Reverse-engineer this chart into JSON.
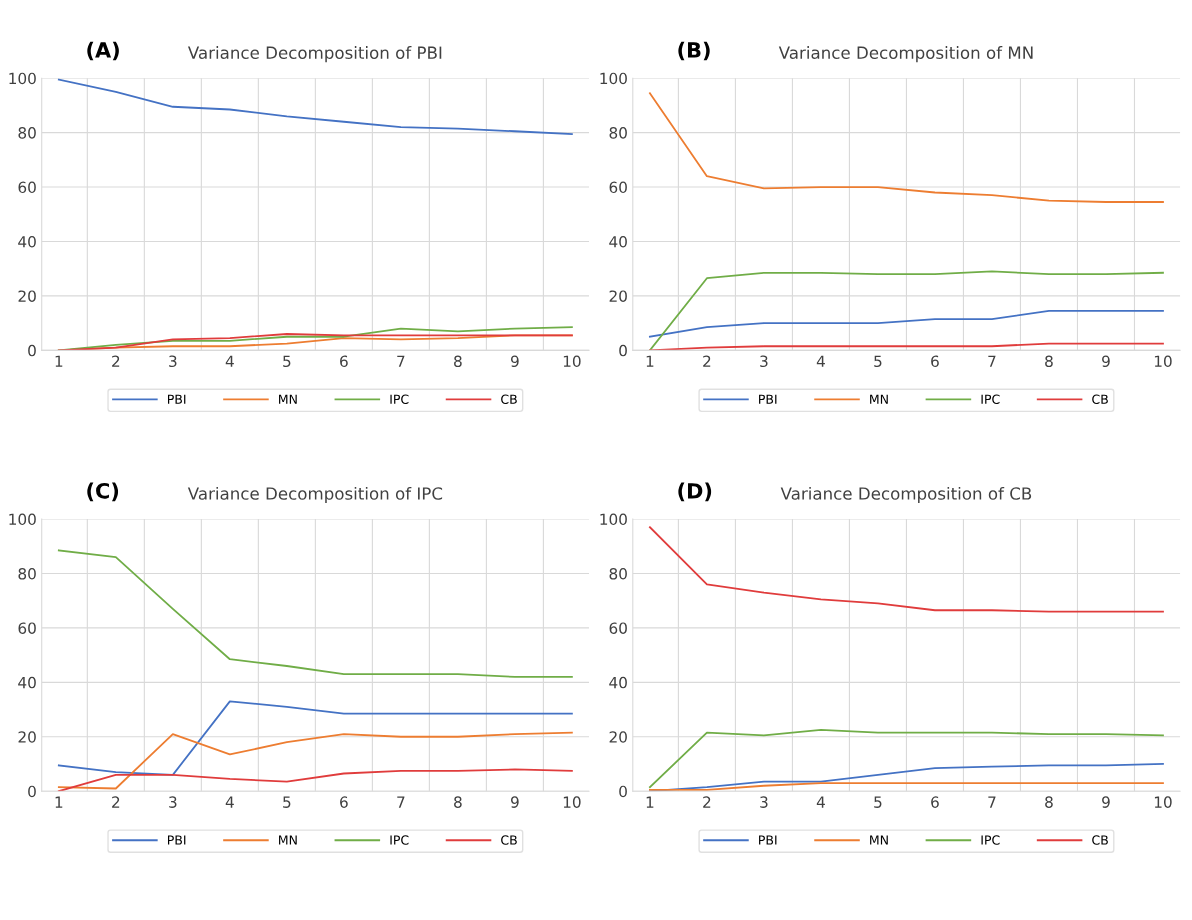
{
  "chart_data": [
    {
      "type": "line",
      "title": "Variance Decomposition of PBI",
      "annotations": [
        "(A)"
      ],
      "categories": [
        "1",
        "2",
        "3",
        "4",
        "5",
        "6",
        "7",
        "8",
        "9",
        "10"
      ],
      "ylim": [
        0,
        100
      ],
      "yticks": [
        0,
        20,
        40,
        60,
        80,
        100
      ],
      "grid": true,
      "legend": "bottom",
      "series": [
        {
          "name": "PBI",
          "color": "#4472c4",
          "values": [
            99.5,
            95,
            89.5,
            88.5,
            86,
            84,
            82,
            81.5,
            80.5,
            79.5
          ]
        },
        {
          "name": "MN",
          "color": "#ed7d31",
          "values": [
            0,
            1,
            1.5,
            1.5,
            2.5,
            4.5,
            4,
            4.5,
            5.5,
            5.5
          ]
        },
        {
          "name": "IPC",
          "color": "#70ad47",
          "values": [
            0,
            2,
            3.5,
            3.5,
            5,
            5,
            8,
            7,
            8,
            8.5
          ]
        },
        {
          "name": "CB",
          "color": "#e03c3c",
          "values": [
            0,
            1,
            4,
            4.5,
            6,
            5.5,
            5.5,
            5.5,
            5.5,
            5.5
          ]
        }
      ]
    },
    {
      "type": "line",
      "title": "Variance Decomposition of MN",
      "annotations": [
        "(B)"
      ],
      "categories": [
        "1",
        "2",
        "3",
        "4",
        "5",
        "6",
        "7",
        "8",
        "9",
        "10"
      ],
      "ylim": [
        0,
        100
      ],
      "yticks": [
        0,
        20,
        40,
        60,
        80,
        100
      ],
      "grid": true,
      "legend": "bottom",
      "series": [
        {
          "name": "PBI",
          "color": "#4472c4",
          "values": [
            5,
            8.5,
            10,
            10,
            10,
            11.5,
            11.5,
            14.5,
            14.5,
            14.5
          ]
        },
        {
          "name": "MN",
          "color": "#ed7d31",
          "values": [
            94.5,
            64,
            59.5,
            60,
            60,
            58,
            57,
            55,
            54.5,
            54.5
          ]
        },
        {
          "name": "IPC",
          "color": "#70ad47",
          "values": [
            0,
            26.5,
            28.5,
            28.5,
            28,
            28,
            29,
            28,
            28,
            28.5
          ]
        },
        {
          "name": "CB",
          "color": "#e03c3c",
          "values": [
            0,
            1,
            1.5,
            1.5,
            1.5,
            1.5,
            1.5,
            2.5,
            2.5,
            2.5
          ]
        }
      ]
    },
    {
      "type": "line",
      "title": "Variance Decomposition of IPC",
      "annotations": [
        "(C)"
      ],
      "categories": [
        "1",
        "2",
        "3",
        "4",
        "5",
        "6",
        "7",
        "8",
        "9",
        "10"
      ],
      "ylim": [
        0,
        100
      ],
      "yticks": [
        0,
        20,
        40,
        60,
        80,
        100
      ],
      "grid": true,
      "legend": "bottom",
      "series": [
        {
          "name": "PBI",
          "color": "#4472c4",
          "values": [
            9.5,
            7,
            6,
            33,
            31,
            28.5,
            28.5,
            28.5,
            28.5,
            28.5
          ]
        },
        {
          "name": "MN",
          "color": "#ed7d31",
          "values": [
            1.5,
            1,
            21,
            13.5,
            18,
            21,
            20,
            20,
            21,
            21.5
          ]
        },
        {
          "name": "IPC",
          "color": "#70ad47",
          "values": [
            88.5,
            86,
            67,
            48.5,
            46,
            43,
            43,
            43,
            42,
            42
          ]
        },
        {
          "name": "CB",
          "color": "#e03c3c",
          "values": [
            0,
            6,
            6,
            4.5,
            3.5,
            6.5,
            7.5,
            7.5,
            8,
            7.5
          ]
        }
      ]
    },
    {
      "type": "line",
      "title": "Variance Decomposition of CB",
      "annotations": [
        "(D)"
      ],
      "categories": [
        "1",
        "2",
        "3",
        "4",
        "5",
        "6",
        "7",
        "8",
        "9",
        "10"
      ],
      "ylim": [
        0,
        100
      ],
      "yticks": [
        0,
        20,
        40,
        60,
        80,
        100
      ],
      "grid": true,
      "legend": "bottom",
      "series": [
        {
          "name": "PBI",
          "color": "#4472c4",
          "values": [
            0,
            1.5,
            3.5,
            3.5,
            6,
            8.5,
            9,
            9.5,
            9.5,
            10
          ]
        },
        {
          "name": "MN",
          "color": "#ed7d31",
          "values": [
            0.5,
            0.5,
            2,
            3,
            3,
            3,
            3,
            3,
            3,
            3
          ]
        },
        {
          "name": "IPC",
          "color": "#70ad47",
          "values": [
            1.5,
            21.5,
            20.5,
            22.5,
            21.5,
            21.5,
            21.5,
            21,
            21,
            20.5
          ]
        },
        {
          "name": "CB",
          "color": "#e03c3c",
          "values": [
            97,
            76,
            73,
            70.5,
            69,
            66.5,
            66.5,
            66,
            66,
            66
          ]
        }
      ]
    }
  ]
}
